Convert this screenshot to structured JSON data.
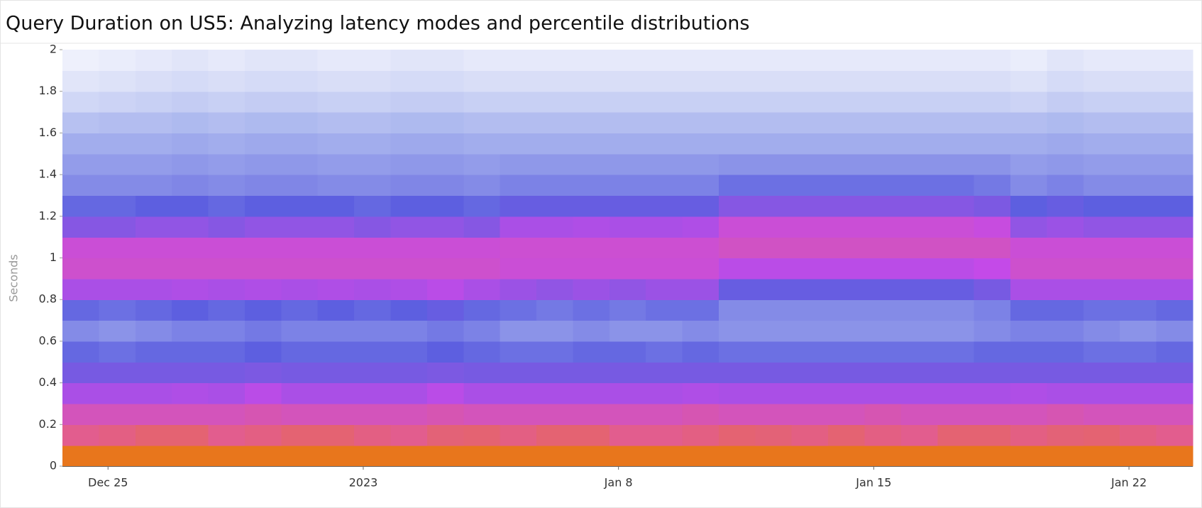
{
  "chart_data": {
    "type": "heatmap",
    "title": "Query Duration on US5: Analyzing latency modes and percentile distributions",
    "ylabel": "Seconds",
    "xlim": [
      "2022-12-23T18:00",
      "2023-01-23T18:00"
    ],
    "xticks": [
      {
        "value": "2022-12-25T00:00",
        "label": "Dec 25"
      },
      {
        "value": "2023-01-01T00:00",
        "label": "2023"
      },
      {
        "value": "2023-01-08T00:00",
        "label": "Jan 8"
      },
      {
        "value": "2023-01-15T00:00",
        "label": "Jan 15"
      },
      {
        "value": "2023-01-22T00:00",
        "label": "Jan 22"
      }
    ],
    "ylim": [
      0,
      2
    ],
    "yticks": [
      0,
      0.2,
      0.4,
      0.6,
      0.8,
      1,
      1.2,
      1.4,
      1.6,
      1.8,
      2
    ],
    "x": [
      "2022-12-23T18:00",
      "2022-12-24T18:00",
      "2022-12-25T18:00",
      "2022-12-26T18:00",
      "2022-12-27T18:00",
      "2022-12-28T18:00",
      "2022-12-29T18:00",
      "2022-12-30T18:00",
      "2022-12-31T18:00",
      "2023-01-01T18:00",
      "2023-01-02T18:00",
      "2023-01-03T18:00",
      "2023-01-04T18:00",
      "2023-01-05T18:00",
      "2023-01-06T18:00",
      "2023-01-07T18:00",
      "2023-01-08T18:00",
      "2023-01-09T18:00",
      "2023-01-10T18:00",
      "2023-01-11T18:00",
      "2023-01-12T18:00",
      "2023-01-13T18:00",
      "2023-01-14T18:00",
      "2023-01-15T18:00",
      "2023-01-16T18:00",
      "2023-01-17T18:00",
      "2023-01-18T18:00",
      "2023-01-19T18:00",
      "2023-01-20T18:00",
      "2023-01-21T18:00",
      "2023-01-22T18:00"
    ],
    "ybins": [
      0,
      0.1,
      0.2,
      0.3,
      0.4,
      0.5,
      0.6,
      0.7,
      0.8,
      0.9,
      1,
      1.1,
      1.2,
      1.3,
      1.4,
      1.5,
      1.6,
      1.7,
      1.8,
      1.9,
      2
    ],
    "colorscale": [
      "#ffffff",
      "#aab6ee",
      "#5d5fe0",
      "#c44ae8",
      "#e25d8e",
      "#e8761c"
    ],
    "z": [
      [
        1,
        1,
        1,
        1,
        1,
        1,
        1,
        1,
        1,
        1,
        1,
        1,
        1,
        1,
        1,
        1,
        1,
        1,
        1,
        1,
        1,
        1,
        1,
        1,
        1,
        1,
        1,
        1,
        1,
        1,
        1
      ],
      [
        0.8,
        0.82,
        0.85,
        0.85,
        0.8,
        0.82,
        0.85,
        0.85,
        0.82,
        0.8,
        0.84,
        0.85,
        0.82,
        0.85,
        0.85,
        0.8,
        0.8,
        0.82,
        0.85,
        0.84,
        0.82,
        0.85,
        0.82,
        0.8,
        0.85,
        0.85,
        0.82,
        0.84,
        0.85,
        0.82,
        0.8
      ],
      [
        0.7,
        0.7,
        0.7,
        0.7,
        0.7,
        0.72,
        0.7,
        0.7,
        0.7,
        0.7,
        0.72,
        0.7,
        0.7,
        0.7,
        0.7,
        0.7,
        0.7,
        0.72,
        0.7,
        0.7,
        0.7,
        0.7,
        0.72,
        0.7,
        0.7,
        0.7,
        0.7,
        0.72,
        0.7,
        0.7,
        0.7
      ],
      [
        0.55,
        0.55,
        0.55,
        0.56,
        0.55,
        0.58,
        0.55,
        0.55,
        0.55,
        0.55,
        0.58,
        0.55,
        0.55,
        0.55,
        0.55,
        0.55,
        0.55,
        0.56,
        0.55,
        0.55,
        0.55,
        0.55,
        0.55,
        0.55,
        0.55,
        0.55,
        0.56,
        0.55,
        0.55,
        0.55,
        0.55
      ],
      [
        0.45,
        0.45,
        0.45,
        0.45,
        0.45,
        0.46,
        0.45,
        0.45,
        0.45,
        0.45,
        0.46,
        0.45,
        0.45,
        0.45,
        0.45,
        0.45,
        0.45,
        0.45,
        0.45,
        0.45,
        0.45,
        0.45,
        0.45,
        0.45,
        0.45,
        0.45,
        0.45,
        0.45,
        0.45,
        0.45,
        0.45
      ],
      [
        0.38,
        0.36,
        0.38,
        0.38,
        0.38,
        0.4,
        0.38,
        0.38,
        0.38,
        0.38,
        0.4,
        0.38,
        0.36,
        0.36,
        0.38,
        0.38,
        0.36,
        0.38,
        0.36,
        0.36,
        0.36,
        0.36,
        0.36,
        0.36,
        0.36,
        0.38,
        0.38,
        0.38,
        0.36,
        0.36,
        0.38
      ],
      [
        0.3,
        0.28,
        0.3,
        0.32,
        0.32,
        0.34,
        0.32,
        0.32,
        0.32,
        0.32,
        0.34,
        0.32,
        0.28,
        0.28,
        0.3,
        0.28,
        0.28,
        0.3,
        0.28,
        0.28,
        0.28,
        0.28,
        0.28,
        0.28,
        0.28,
        0.3,
        0.32,
        0.32,
        0.3,
        0.28,
        0.3
      ],
      [
        0.38,
        0.36,
        0.38,
        0.4,
        0.38,
        0.4,
        0.38,
        0.4,
        0.38,
        0.4,
        0.42,
        0.38,
        0.36,
        0.34,
        0.36,
        0.34,
        0.36,
        0.36,
        0.3,
        0.3,
        0.3,
        0.3,
        0.3,
        0.3,
        0.3,
        0.32,
        0.38,
        0.38,
        0.36,
        0.36,
        0.38
      ],
      [
        0.55,
        0.55,
        0.55,
        0.56,
        0.55,
        0.56,
        0.55,
        0.56,
        0.55,
        0.56,
        0.58,
        0.55,
        0.52,
        0.5,
        0.52,
        0.5,
        0.52,
        0.52,
        0.42,
        0.42,
        0.42,
        0.42,
        0.42,
        0.42,
        0.42,
        0.45,
        0.55,
        0.55,
        0.55,
        0.55,
        0.55
      ],
      [
        0.66,
        0.66,
        0.66,
        0.66,
        0.66,
        0.66,
        0.66,
        0.66,
        0.66,
        0.66,
        0.66,
        0.66,
        0.64,
        0.64,
        0.64,
        0.64,
        0.64,
        0.64,
        0.58,
        0.58,
        0.58,
        0.58,
        0.58,
        0.58,
        0.58,
        0.6,
        0.66,
        0.66,
        0.66,
        0.66,
        0.66
      ],
      [
        0.64,
        0.64,
        0.64,
        0.64,
        0.64,
        0.64,
        0.64,
        0.64,
        0.64,
        0.64,
        0.64,
        0.64,
        0.65,
        0.65,
        0.65,
        0.65,
        0.65,
        0.65,
        0.68,
        0.68,
        0.68,
        0.68,
        0.68,
        0.68,
        0.68,
        0.68,
        0.64,
        0.64,
        0.64,
        0.64,
        0.64
      ],
      [
        0.48,
        0.48,
        0.5,
        0.5,
        0.48,
        0.5,
        0.5,
        0.5,
        0.48,
        0.5,
        0.5,
        0.48,
        0.55,
        0.55,
        0.56,
        0.55,
        0.55,
        0.56,
        0.64,
        0.64,
        0.64,
        0.64,
        0.64,
        0.64,
        0.64,
        0.62,
        0.5,
        0.52,
        0.5,
        0.5,
        0.5
      ],
      [
        0.38,
        0.38,
        0.4,
        0.4,
        0.38,
        0.4,
        0.4,
        0.4,
        0.38,
        0.4,
        0.4,
        0.38,
        0.42,
        0.42,
        0.42,
        0.42,
        0.42,
        0.42,
        0.48,
        0.48,
        0.48,
        0.48,
        0.48,
        0.48,
        0.48,
        0.46,
        0.4,
        0.42,
        0.4,
        0.4,
        0.4
      ],
      [
        0.3,
        0.3,
        0.3,
        0.31,
        0.3,
        0.31,
        0.31,
        0.3,
        0.3,
        0.31,
        0.31,
        0.3,
        0.32,
        0.32,
        0.32,
        0.32,
        0.32,
        0.32,
        0.36,
        0.36,
        0.36,
        0.36,
        0.36,
        0.36,
        0.36,
        0.34,
        0.3,
        0.32,
        0.3,
        0.3,
        0.3
      ],
      [
        0.26,
        0.26,
        0.26,
        0.27,
        0.26,
        0.27,
        0.27,
        0.26,
        0.26,
        0.27,
        0.27,
        0.26,
        0.27,
        0.27,
        0.27,
        0.27,
        0.27,
        0.27,
        0.28,
        0.28,
        0.28,
        0.28,
        0.28,
        0.28,
        0.28,
        0.28,
        0.26,
        0.27,
        0.26,
        0.26,
        0.26
      ],
      [
        0.22,
        0.22,
        0.22,
        0.23,
        0.22,
        0.23,
        0.23,
        0.22,
        0.22,
        0.23,
        0.23,
        0.22,
        0.22,
        0.22,
        0.22,
        0.22,
        0.22,
        0.22,
        0.22,
        0.22,
        0.22,
        0.22,
        0.22,
        0.22,
        0.22,
        0.22,
        0.22,
        0.23,
        0.22,
        0.22,
        0.22
      ],
      [
        0.17,
        0.18,
        0.18,
        0.19,
        0.18,
        0.19,
        0.19,
        0.18,
        0.18,
        0.19,
        0.19,
        0.18,
        0.18,
        0.18,
        0.18,
        0.18,
        0.18,
        0.18,
        0.18,
        0.18,
        0.18,
        0.18,
        0.18,
        0.18,
        0.18,
        0.18,
        0.18,
        0.19,
        0.18,
        0.18,
        0.18
      ],
      [
        0.11,
        0.12,
        0.13,
        0.14,
        0.13,
        0.14,
        0.14,
        0.13,
        0.13,
        0.14,
        0.14,
        0.13,
        0.13,
        0.13,
        0.13,
        0.13,
        0.13,
        0.13,
        0.13,
        0.13,
        0.13,
        0.13,
        0.13,
        0.13,
        0.13,
        0.13,
        0.12,
        0.14,
        0.13,
        0.13,
        0.13
      ],
      [
        0.07,
        0.08,
        0.09,
        0.1,
        0.09,
        0.1,
        0.1,
        0.09,
        0.09,
        0.1,
        0.1,
        0.09,
        0.09,
        0.09,
        0.09,
        0.09,
        0.09,
        0.09,
        0.09,
        0.09,
        0.09,
        0.09,
        0.09,
        0.09,
        0.09,
        0.09,
        0.08,
        0.1,
        0.09,
        0.09,
        0.09
      ],
      [
        0.04,
        0.05,
        0.06,
        0.07,
        0.06,
        0.07,
        0.07,
        0.06,
        0.06,
        0.07,
        0.07,
        0.06,
        0.06,
        0.06,
        0.06,
        0.06,
        0.06,
        0.06,
        0.06,
        0.06,
        0.06,
        0.06,
        0.06,
        0.06,
        0.06,
        0.06,
        0.05,
        0.07,
        0.06,
        0.06,
        0.06
      ]
    ]
  }
}
